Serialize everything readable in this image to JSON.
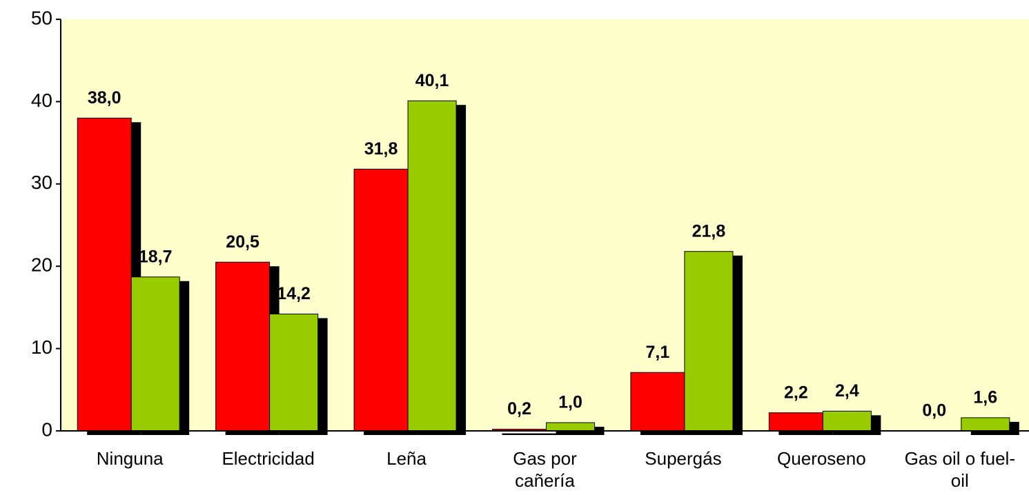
{
  "chart_data": {
    "type": "bar",
    "categories": [
      "Ninguna",
      "Electricidad",
      "Leña",
      "Gas por cañería",
      "Supergás",
      "Queroseno",
      "Gas oil o fuel-oil"
    ],
    "series": [
      {
        "color": "#ff0000",
        "values": [
          38.0,
          20.5,
          31.8,
          0.2,
          7.1,
          2.2,
          0.0
        ],
        "value_labels": [
          "38,0",
          "20,5",
          "31,8",
          "0,2",
          "7,1",
          "2,2",
          "0,0"
        ]
      },
      {
        "color": "#99cc00",
        "values": [
          18.7,
          14.2,
          40.1,
          1.0,
          21.8,
          2.4,
          1.6
        ],
        "value_labels": [
          "18,7",
          "14,2",
          "40,1",
          "1,0",
          "21,8",
          "2,4",
          "1,6"
        ]
      }
    ],
    "ylim": [
      0,
      50
    ],
    "yticks": [
      0,
      10,
      20,
      30,
      40,
      50
    ],
    "background": "#ffffcc",
    "bar_shadow": true
  }
}
